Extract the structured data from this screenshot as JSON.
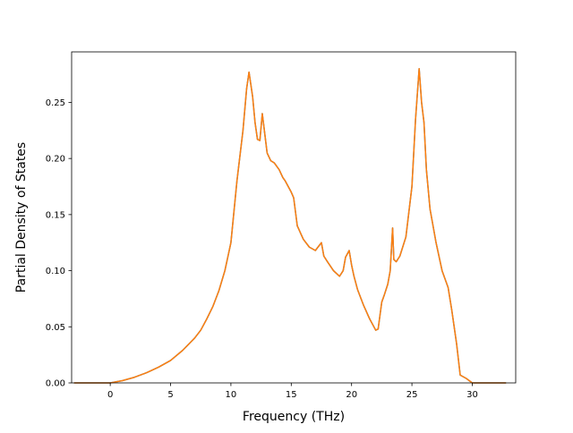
{
  "chart_data": {
    "type": "line",
    "title": "",
    "xlabel": "Frequency (THz)",
    "ylabel": "Partial Density of States",
    "xlim": [
      -3.2,
      33.6
    ],
    "ylim": [
      0,
      0.295
    ],
    "xticks": [
      0,
      5,
      10,
      15,
      20,
      25,
      30
    ],
    "yticks": [
      0.0,
      0.05,
      0.1,
      0.15,
      0.2,
      0.25
    ],
    "xtick_labels": [
      "0",
      "5",
      "10",
      "15",
      "20",
      "25",
      "30"
    ],
    "ytick_labels": [
      "0.00",
      "0.05",
      "0.10",
      "0.15",
      "0.20",
      "0.25"
    ],
    "grid": false,
    "legend": "none",
    "series": [
      {
        "color": "#1f77b4",
        "x": [
          -3.0,
          0.0,
          1.0,
          2.0,
          3.0,
          4.0,
          5.0,
          6.0,
          7.0,
          7.5,
          8.0,
          8.5,
          9.0,
          9.5,
          10.0,
          10.5,
          11.0,
          11.3,
          11.5,
          11.8,
          12.0,
          12.2,
          12.4,
          12.6,
          13.0,
          13.3,
          13.6,
          14.0,
          14.3,
          14.5,
          15.0,
          15.2,
          15.5,
          16.0,
          16.5,
          17.0,
          17.5,
          17.7,
          18.0,
          18.5,
          19.0,
          19.3,
          19.5,
          19.8,
          20.0,
          20.2,
          20.5,
          21.0,
          21.5,
          22.0,
          22.2,
          22.5,
          22.7,
          23.0,
          23.2,
          23.4,
          23.5,
          23.7,
          24.0,
          24.5,
          25.0,
          25.3,
          25.6,
          25.8,
          26.0,
          26.2,
          26.5,
          27.0,
          27.5,
          28.0,
          28.3,
          28.7,
          29.0,
          29.5,
          30.0,
          32.8
        ],
        "y": [
          0.0,
          0.0,
          0.002,
          0.005,
          0.009,
          0.014,
          0.02,
          0.029,
          0.04,
          0.047,
          0.057,
          0.068,
          0.082,
          0.1,
          0.125,
          0.18,
          0.225,
          0.262,
          0.277,
          0.255,
          0.232,
          0.217,
          0.216,
          0.24,
          0.205,
          0.198,
          0.196,
          0.19,
          0.183,
          0.18,
          0.17,
          0.165,
          0.14,
          0.128,
          0.121,
          0.118,
          0.125,
          0.113,
          0.108,
          0.1,
          0.095,
          0.1,
          0.112,
          0.118,
          0.105,
          0.095,
          0.083,
          0.069,
          0.057,
          0.047,
          0.048,
          0.072,
          0.078,
          0.088,
          0.1,
          0.138,
          0.11,
          0.108,
          0.113,
          0.13,
          0.175,
          0.235,
          0.28,
          0.25,
          0.232,
          0.19,
          0.155,
          0.125,
          0.1,
          0.085,
          0.065,
          0.035,
          0.007,
          0.004,
          0.0,
          0.0
        ]
      },
      {
        "color": "#ff7f0e",
        "x": [
          -3.0,
          0.0,
          1.0,
          2.0,
          3.0,
          4.0,
          5.0,
          6.0,
          7.0,
          7.5,
          8.0,
          8.5,
          9.0,
          9.5,
          10.0,
          10.5,
          11.0,
          11.3,
          11.5,
          11.8,
          12.0,
          12.2,
          12.4,
          12.6,
          13.0,
          13.3,
          13.6,
          14.0,
          14.3,
          14.5,
          15.0,
          15.2,
          15.5,
          16.0,
          16.5,
          17.0,
          17.5,
          17.7,
          18.0,
          18.5,
          19.0,
          19.3,
          19.5,
          19.8,
          20.0,
          20.2,
          20.5,
          21.0,
          21.5,
          22.0,
          22.2,
          22.5,
          22.7,
          23.0,
          23.2,
          23.4,
          23.5,
          23.7,
          24.0,
          24.5,
          25.0,
          25.3,
          25.6,
          25.8,
          26.0,
          26.2,
          26.5,
          27.0,
          27.5,
          28.0,
          28.3,
          28.7,
          29.0,
          29.5,
          30.0,
          32.8
        ],
        "y": [
          0.0,
          0.0,
          0.002,
          0.005,
          0.009,
          0.014,
          0.02,
          0.029,
          0.04,
          0.047,
          0.057,
          0.068,
          0.082,
          0.1,
          0.125,
          0.18,
          0.225,
          0.262,
          0.277,
          0.255,
          0.232,
          0.217,
          0.216,
          0.24,
          0.205,
          0.198,
          0.196,
          0.19,
          0.183,
          0.18,
          0.17,
          0.165,
          0.14,
          0.128,
          0.121,
          0.118,
          0.125,
          0.113,
          0.108,
          0.1,
          0.095,
          0.1,
          0.112,
          0.118,
          0.105,
          0.095,
          0.083,
          0.069,
          0.057,
          0.047,
          0.048,
          0.072,
          0.078,
          0.088,
          0.1,
          0.138,
          0.11,
          0.108,
          0.113,
          0.13,
          0.175,
          0.235,
          0.28,
          0.25,
          0.232,
          0.19,
          0.155,
          0.125,
          0.1,
          0.085,
          0.065,
          0.035,
          0.007,
          0.004,
          0.0,
          0.0
        ]
      }
    ]
  }
}
